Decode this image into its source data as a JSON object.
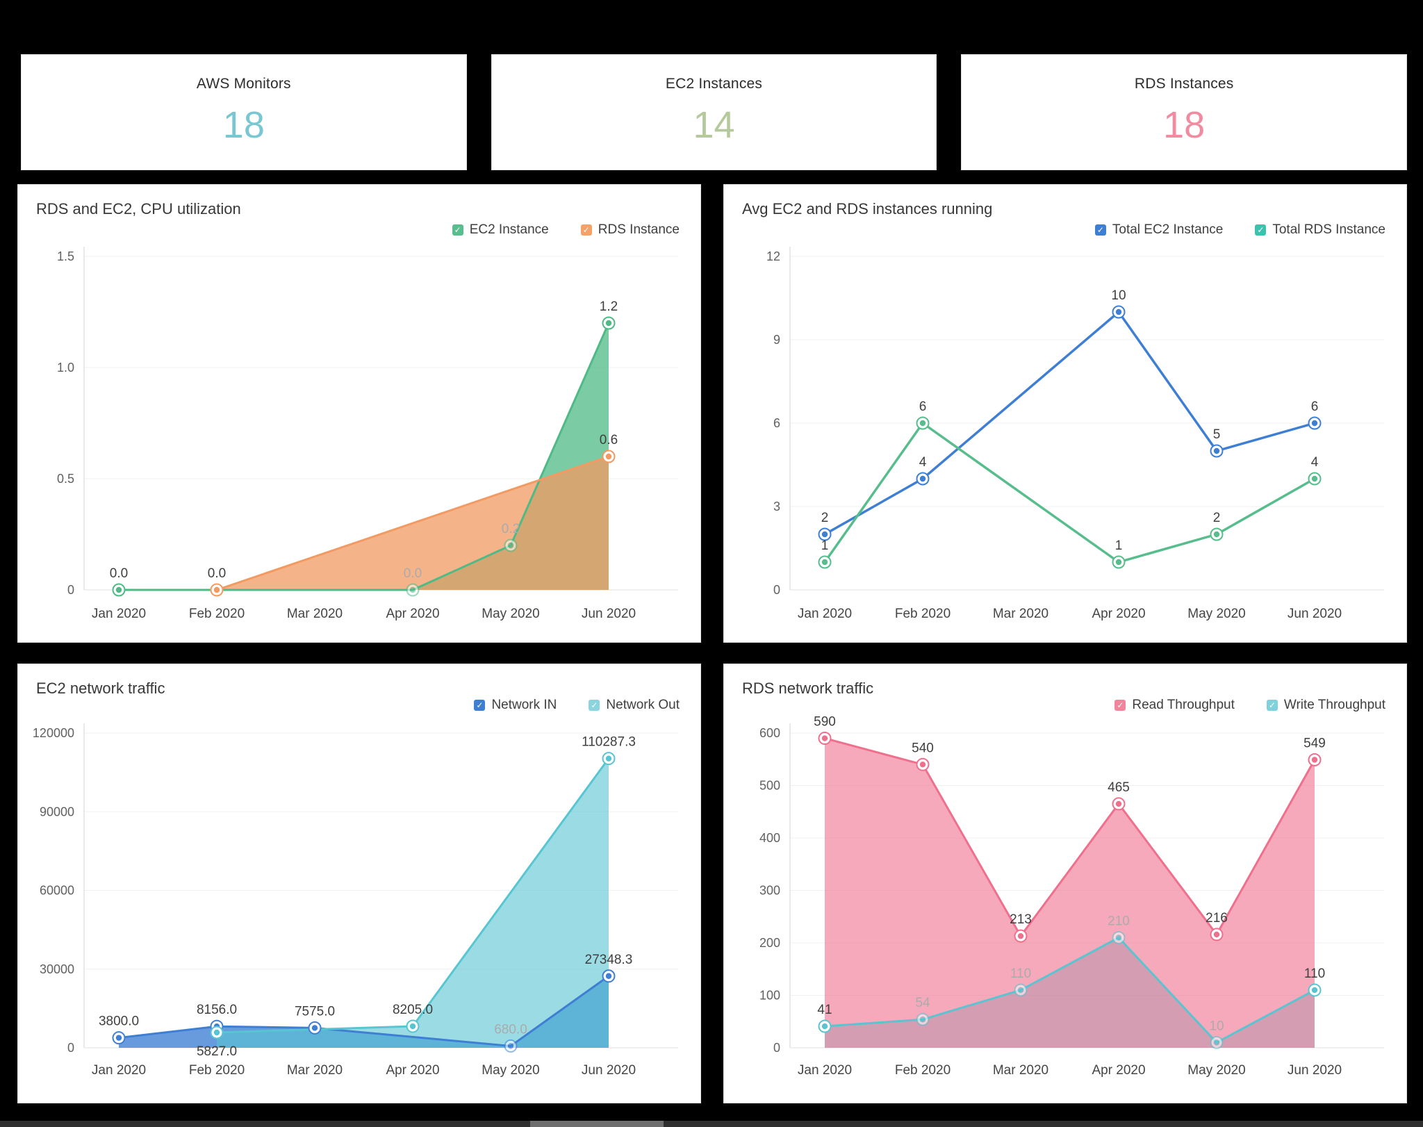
{
  "cards": [
    {
      "title": "AWS Monitors",
      "value": "18",
      "color": "#79c7d1"
    },
    {
      "title": "EC2 Instances",
      "value": "14",
      "color": "#b5c99c"
    },
    {
      "title": "RDS Instances",
      "value": "18",
      "color": "#f08ba0"
    }
  ],
  "chart_data": [
    {
      "type": "area",
      "title": "RDS and EC2, CPU utilization",
      "categories": [
        "Jan 2020",
        "Feb 2020",
        "Mar 2020",
        "Apr 2020",
        "May 2020",
        "Jun 2020"
      ],
      "ylim": [
        0,
        1.5
      ],
      "yticks": [
        0,
        0.5,
        1.0,
        1.5
      ],
      "ytick_labels": [
        "0",
        "0.5",
        "1.0",
        "1.5"
      ],
      "grid": "horizontal",
      "legend_position": "top-right",
      "legend": [
        {
          "label": "EC2 Instance",
          "color": "#57be8d"
        },
        {
          "label": "RDS Instance",
          "color": "#f5a168"
        }
      ],
      "series": [
        {
          "name": "EC2 Instance",
          "color": "#4fba86",
          "area": true,
          "fill_opacity": 0.75,
          "points": [
            {
              "c": 0,
              "v": 0,
              "label": "0.0"
            },
            {
              "c": 3,
              "v": 0,
              "label": "0.0",
              "faded": true
            },
            {
              "c": 4,
              "v": 0.2,
              "label": "0.2",
              "faded": true
            },
            {
              "c": 5,
              "v": 1.2,
              "label": "1.2"
            }
          ]
        },
        {
          "name": "RDS Instance",
          "color": "#f29a62",
          "area": true,
          "fill_opacity": 0.75,
          "points": [
            {
              "c": 1,
              "v": 0,
              "label": "0.0"
            },
            {
              "c": 5,
              "v": 0.6,
              "label": "0.6"
            }
          ]
        }
      ]
    },
    {
      "type": "line",
      "title": "Avg EC2 and RDS instances running",
      "categories": [
        "Jan 2020",
        "Feb 2020",
        "Mar 2020",
        "Apr 2020",
        "May 2020",
        "Jun 2020"
      ],
      "ylim": [
        0,
        12
      ],
      "yticks": [
        0,
        3,
        6,
        9,
        12
      ],
      "ytick_labels": [
        "0",
        "3",
        "6",
        "9",
        "12"
      ],
      "grid": "horizontal",
      "legend_position": "top-right",
      "legend": [
        {
          "label": "Total EC2 Instance",
          "color": "#3e7fd4"
        },
        {
          "label": "Total RDS Instance",
          "color": "#3cc2ad"
        }
      ],
      "series": [
        {
          "name": "Total EC2 Instance",
          "color": "#3e7fd4",
          "area": false,
          "points": [
            {
              "c": 0,
              "v": 2,
              "label": "2"
            },
            {
              "c": 1,
              "v": 4,
              "label": "4"
            },
            {
              "c": 3,
              "v": 10,
              "label": "10"
            },
            {
              "c": 4,
              "v": 5,
              "label": "5"
            },
            {
              "c": 5,
              "v": 6,
              "label": "6"
            }
          ]
        },
        {
          "name": "Total RDS Instance",
          "color": "#57bd8c",
          "area": false,
          "points": [
            {
              "c": 0,
              "v": 1,
              "label": "1"
            },
            {
              "c": 1,
              "v": 6,
              "label": "6"
            },
            {
              "c": 3,
              "v": 1,
              "label": "1"
            },
            {
              "c": 4,
              "v": 2,
              "label": "2"
            },
            {
              "c": 5,
              "v": 4,
              "label": "4"
            }
          ]
        }
      ]
    },
    {
      "type": "area",
      "title": "EC2 network traffic",
      "categories": [
        "Jan 2020",
        "Feb 2020",
        "Mar 2020",
        "Apr 2020",
        "May 2020",
        "Jun 2020"
      ],
      "ylim": [
        0,
        120000
      ],
      "yticks": [
        0,
        30000,
        60000,
        90000,
        120000
      ],
      "ytick_labels": [
        "0",
        "30000",
        "60000",
        "90000",
        "120000"
      ],
      "grid": "horizontal",
      "legend_position": "top-right",
      "legend": [
        {
          "label": "Network IN",
          "color": "#3e7fd4"
        },
        {
          "label": "Network Out",
          "color": "#8ad4de"
        }
      ],
      "series": [
        {
          "name": "Network IN",
          "color": "#3e7fd4",
          "area": true,
          "fill_opacity": 0.78,
          "points": [
            {
              "c": 0,
              "v": 3800,
              "label": "3800.0"
            },
            {
              "c": 1,
              "v": 8156,
              "label": "8156.0"
            },
            {
              "c": 2,
              "v": 7575,
              "label": "7575.0"
            },
            {
              "c": 4,
              "v": 680,
              "label": "680.0",
              "faded": true
            },
            {
              "c": 5,
              "v": 27348.3,
              "label": "27348.3"
            }
          ]
        },
        {
          "name": "Network Out",
          "color": "#58c5d2",
          "area": true,
          "fill_opacity": 0.6,
          "points": [
            {
              "c": 1,
              "v": 5827,
              "label": "5827.0",
              "label_pos": "below"
            },
            {
              "c": 3,
              "v": 8205,
              "label": "8205.0"
            },
            {
              "c": 5,
              "v": 110287.3,
              "label": "110287.3"
            }
          ]
        }
      ]
    },
    {
      "type": "area",
      "title": "RDS network traffic",
      "categories": [
        "Jan 2020",
        "Feb 2020",
        "Mar 2020",
        "Apr 2020",
        "May 2020",
        "Jun 2020"
      ],
      "ylim": [
        0,
        600
      ],
      "yticks": [
        0,
        100,
        200,
        300,
        400,
        500,
        600
      ],
      "ytick_labels": [
        "0",
        "100",
        "200",
        "300",
        "400",
        "500",
        "600"
      ],
      "grid": "horizontal",
      "legend_position": "top-right",
      "legend": [
        {
          "label": "Read Throughput",
          "color": "#f2849c"
        },
        {
          "label": "Write Throughput",
          "color": "#7fd2dc"
        }
      ],
      "series": [
        {
          "name": "Write Throughput",
          "color": "#5ac4d0",
          "area": true,
          "fill_opacity": 0.5,
          "points": [
            {
              "c": 0,
              "v": 41,
              "label": "41"
            },
            {
              "c": 1,
              "v": 54,
              "label": "54",
              "faded": true
            },
            {
              "c": 2,
              "v": 110,
              "label": "110",
              "faded": true
            },
            {
              "c": 3,
              "v": 210,
              "label": "210",
              "faded": true
            },
            {
              "c": 4,
              "v": 10,
              "label": "10",
              "faded": true
            },
            {
              "c": 5,
              "v": 110,
              "label": "110"
            }
          ]
        },
        {
          "name": "Read Throughput",
          "color": "#ef708d",
          "area": true,
          "fill_opacity": 0.6,
          "points": [
            {
              "c": 0,
              "v": 590,
              "label": "590"
            },
            {
              "c": 1,
              "v": 540,
              "label": "540"
            },
            {
              "c": 2,
              "v": 213,
              "label": "213"
            },
            {
              "c": 3,
              "v": 465,
              "label": "465"
            },
            {
              "c": 4,
              "v": 216,
              "label": "216"
            },
            {
              "c": 5,
              "v": 549,
              "label": "549"
            }
          ]
        }
      ]
    }
  ]
}
